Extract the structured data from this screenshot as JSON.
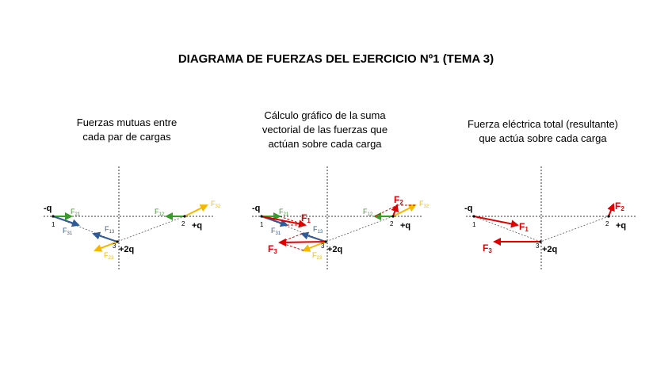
{
  "title": "DIAGRAMA DE FUERZAS DEL EJERCICIO Nº1 (TEMA 3)",
  "colors": {
    "green": "#3a9a2c",
    "blue": "#2f5b96",
    "orange": "#f5b800",
    "red": "#e00000",
    "axis": "#333333"
  },
  "charges": {
    "q1": {
      "sign": "-q",
      "index": "1"
    },
    "q2": {
      "sign": "+q",
      "index": "2"
    },
    "q3": {
      "sign": "+2q",
      "index": "3"
    }
  },
  "panels": [
    {
      "title_lines": [
        "Fuerzas mutuas entre",
        "cada par de cargas"
      ],
      "forces": [
        "F21",
        "F31",
        "F13",
        "F23",
        "F12",
        "F32"
      ]
    },
    {
      "title_lines": [
        "Cálculo gráfico de la suma",
        "vectorial de las fuerzas que",
        "actúan sobre cada carga"
      ],
      "forces": [
        "F21",
        "F31",
        "F13",
        "F23",
        "F12",
        "F32",
        "F1",
        "F2",
        "F3"
      ]
    },
    {
      "title_lines": [
        "Fuerza eléctrica total (resultante)",
        "que actúa sobre cada carga"
      ],
      "forces": [
        "F1",
        "F2",
        "F3"
      ]
    }
  ],
  "force_labels": {
    "F21": {
      "base": "F",
      "sub": "21"
    },
    "F31": {
      "base": "F",
      "sub": "31"
    },
    "F13": {
      "base": "F",
      "sub": "13"
    },
    "F23": {
      "base": "F",
      "sub": "23"
    },
    "F12": {
      "base": "F",
      "sub": "12"
    },
    "F32": {
      "base": "F",
      "sub": "32"
    },
    "F1": {
      "base": "F",
      "sub": "1"
    },
    "F2": {
      "base": "F",
      "sub": "2"
    },
    "F3": {
      "base": "F",
      "sub": "3"
    }
  }
}
